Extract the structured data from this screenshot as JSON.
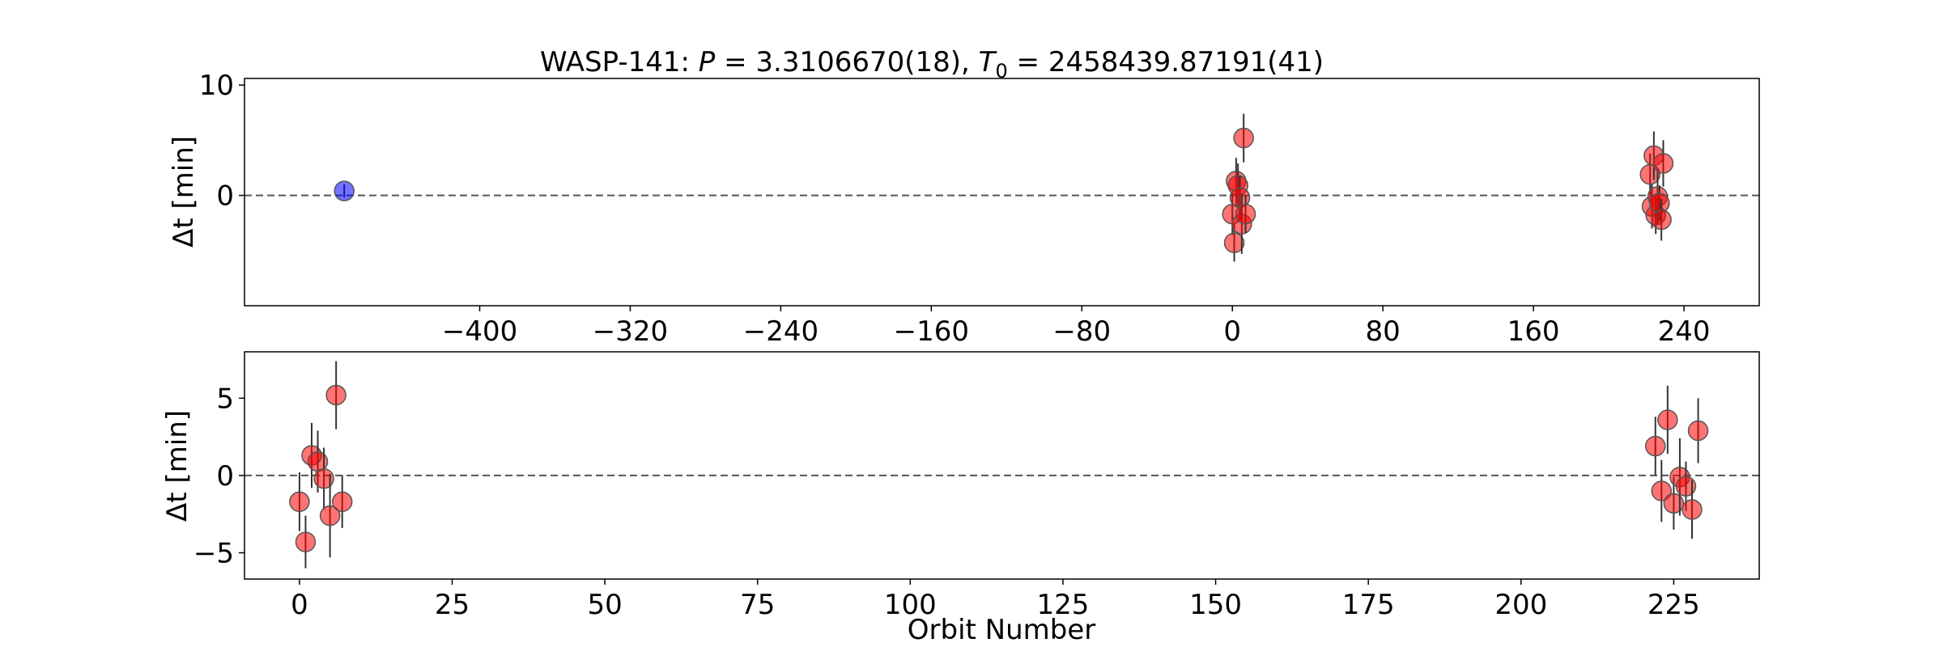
{
  "chart_data": [
    {
      "type": "scatter",
      "panel": "top",
      "title_parts": [
        "WASP-141: ",
        "P",
        " = 3.3106670(18), ",
        "T",
        "0",
        " = 2458439.87191(41)"
      ],
      "xlabel": "",
      "ylabel": "Δt [min]",
      "xlim": [
        -525,
        280
      ],
      "ylim": [
        -10,
        10.6
      ],
      "xticks": [
        -400,
        -320,
        -240,
        -160,
        -80,
        0,
        80,
        160,
        240
      ],
      "yticks": [
        0,
        10
      ],
      "zero_line": true,
      "series": [
        {
          "color": "#0000ff",
          "points": [
            {
              "x": -472,
              "y": 0.4,
              "yerr": 0.6
            }
          ]
        },
        {
          "color": "#ff0000",
          "points": [
            {
              "x": 0,
              "y": -1.7,
              "yerr": 1.9
            },
            {
              "x": 1,
              "y": -4.3,
              "yerr": 1.7
            },
            {
              "x": 2,
              "y": 1.3,
              "yerr": 2.1
            },
            {
              "x": 3,
              "y": 0.9,
              "yerr": 2.0
            },
            {
              "x": 4,
              "y": -0.2,
              "yerr": 2.0
            },
            {
              "x": 5,
              "y": -2.6,
              "yerr": 2.7
            },
            {
              "x": 6,
              "y": 5.2,
              "yerr": 2.2
            },
            {
              "x": 7,
              "y": -1.7,
              "yerr": 1.7
            },
            {
              "x": 222,
              "y": 1.9,
              "yerr": 1.9
            },
            {
              "x": 223,
              "y": -1.0,
              "yerr": 2.0
            },
            {
              "x": 224,
              "y": 3.6,
              "yerr": 2.2
            },
            {
              "x": 225,
              "y": -1.8,
              "yerr": 1.7
            },
            {
              "x": 226,
              "y": -0.1,
              "yerr": 2.5
            },
            {
              "x": 227,
              "y": -0.7,
              "yerr": 1.6
            },
            {
              "x": 228,
              "y": -2.2,
              "yerr": 1.9
            },
            {
              "x": 229,
              "y": 2.9,
              "yerr": 2.1
            }
          ]
        }
      ]
    },
    {
      "type": "scatter",
      "panel": "bottom",
      "xlabel": "Orbit Number",
      "ylabel": "Δt [min]",
      "xlim": [
        -9,
        239
      ],
      "ylim": [
        -6.7,
        8
      ],
      "xticks": [
        0,
        25,
        50,
        75,
        100,
        125,
        150,
        175,
        200,
        225
      ],
      "yticks": [
        -5,
        0,
        5
      ],
      "zero_line": true,
      "series": [
        {
          "color": "#ff0000",
          "points": [
            {
              "x": 0,
              "y": -1.7,
              "yerr": 1.9
            },
            {
              "x": 1,
              "y": -4.3,
              "yerr": 1.7
            },
            {
              "x": 2,
              "y": 1.3,
              "yerr": 2.1
            },
            {
              "x": 3,
              "y": 0.9,
              "yerr": 2.0
            },
            {
              "x": 4,
              "y": -0.2,
              "yerr": 2.0
            },
            {
              "x": 5,
              "y": -2.6,
              "yerr": 2.7
            },
            {
              "x": 6,
              "y": 5.2,
              "yerr": 2.2
            },
            {
              "x": 7,
              "y": -1.7,
              "yerr": 1.7
            },
            {
              "x": 222,
              "y": 1.9,
              "yerr": 1.9
            },
            {
              "x": 223,
              "y": -1.0,
              "yerr": 2.0
            },
            {
              "x": 224,
              "y": 3.6,
              "yerr": 2.2
            },
            {
              "x": 225,
              "y": -1.8,
              "yerr": 1.7
            },
            {
              "x": 226,
              "y": -0.1,
              "yerr": 2.5
            },
            {
              "x": 227,
              "y": -0.7,
              "yerr": 1.6
            },
            {
              "x": 228,
              "y": -2.2,
              "yerr": 1.9
            },
            {
              "x": 229,
              "y": 2.9,
              "yerr": 2.1
            }
          ]
        }
      ]
    }
  ]
}
